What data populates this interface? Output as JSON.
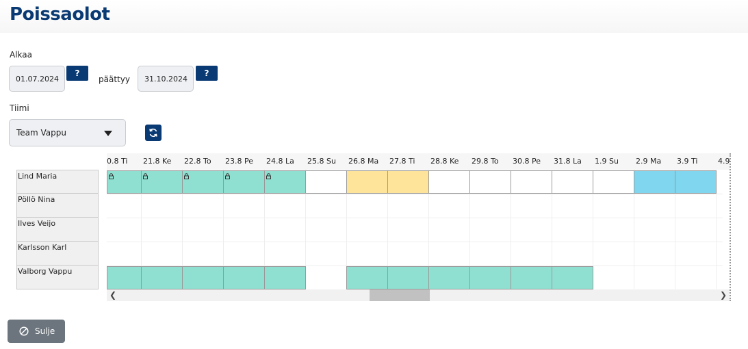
{
  "page": {
    "title": "Poissaolot"
  },
  "dates": {
    "start_label": "Alkaa",
    "start_value": "01.07.2024",
    "end_label": "päättyy",
    "end_value": "31.10.2024",
    "help_label": "?"
  },
  "team": {
    "label": "Tiimi",
    "selected": "Team Vappu"
  },
  "calendar": {
    "days": [
      "0.8 Ti",
      "21.8 Ke",
      "22.8 To",
      "23.8 Pe",
      "24.8 La",
      "25.8 Su",
      "26.8 Ma",
      "27.8 Ti",
      "28.8 Ke",
      "29.8 To",
      "30.8 Pe",
      "31.8 La",
      "1.9 Su",
      "2.9 Ma",
      "3.9 Ti",
      "4.9"
    ],
    "people": [
      "Lind Maria",
      "Pöllö Nina",
      "Ilves Veijo",
      "Karlsson Karl",
      "Valborg Vappu"
    ],
    "colors": {
      "teal": "#8fe0d1",
      "yellow": "#fde49a",
      "blue": "#7fd6ee",
      "white": "#ffffff"
    },
    "rows": [
      [
        "teal",
        "teal",
        "teal",
        "teal",
        "teal",
        "white",
        "yellow",
        "yellow",
        "white",
        "white",
        "white",
        "white",
        "white",
        "blue",
        "blue"
      ],
      [],
      [],
      [],
      [
        "teal",
        "teal",
        "teal",
        "teal",
        "teal",
        "",
        "teal",
        "teal",
        "teal",
        "teal",
        "teal",
        "teal"
      ]
    ],
    "locked": [
      [
        0,
        1,
        2,
        3,
        4
      ],
      [],
      [],
      [],
      []
    ]
  },
  "footer": {
    "close_label": "Sulje"
  },
  "icons": {
    "refresh": "refresh-icon",
    "close": "cancel-circle-icon",
    "lock": "lock-icon"
  }
}
